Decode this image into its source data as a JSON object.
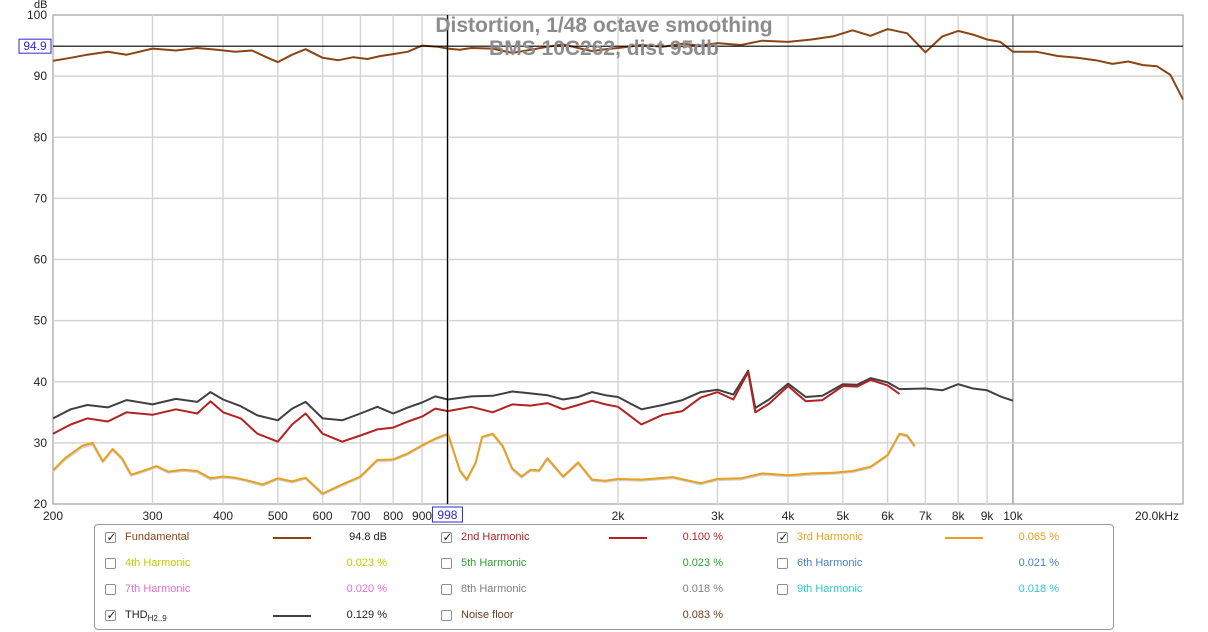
{
  "colors": {
    "fundamental": "#8B4513",
    "h2": "#B22222",
    "h3": "#E8A020",
    "h4": "#C8C800",
    "h5": "#30A030",
    "h6": "#4A7FC0",
    "h7": "#E070D0",
    "h8": "#808080",
    "h9": "#30C8D0",
    "thd": "#404040",
    "noise": "#6B3A1E",
    "noise_plot": "#D0D0D0",
    "grid": "#d4d4d4",
    "cursor": "#000000"
  },
  "chart_data": {
    "type": "line",
    "title": "Distortion, 1/48 octave smoothing",
    "subtitle": "BMS 10C262, dist 95db",
    "ylabel": "dB",
    "xscale": "log",
    "xlim": [
      200,
      20000
    ],
    "ylim": [
      20,
      100
    ],
    "y_ticks": [
      20,
      30,
      40,
      50,
      60,
      70,
      80,
      90,
      100
    ],
    "x_ticks": [
      {
        "v": 200,
        "label": "200"
      },
      {
        "v": 300,
        "label": "300"
      },
      {
        "v": 400,
        "label": "400"
      },
      {
        "v": 500,
        "label": "500"
      },
      {
        "v": 600,
        "label": "600"
      },
      {
        "v": 700,
        "label": "700"
      },
      {
        "v": 800,
        "label": "800"
      },
      {
        "v": 900,
        "label": "900"
      },
      {
        "v": 2000,
        "label": "2k"
      },
      {
        "v": 3000,
        "label": "3k"
      },
      {
        "v": 4000,
        "label": "4k"
      },
      {
        "v": 5000,
        "label": "5k"
      },
      {
        "v": 6000,
        "label": "6k"
      },
      {
        "v": 7000,
        "label": "7k"
      },
      {
        "v": 8000,
        "label": "8k"
      },
      {
        "v": 9000,
        "label": "9k"
      },
      {
        "v": 10000,
        "label": "10k"
      },
      {
        "v": 20000,
        "label": "20.0kHz"
      }
    ],
    "cursor": {
      "x": 998,
      "x_label": "998",
      "y": 94.9,
      "y_label": "94.9"
    },
    "grid": true,
    "series": [
      {
        "name": "Fundamental",
        "key": "fundamental",
        "color_key": "fundamental",
        "x": [
          200,
          215,
          230,
          250,
          270,
          300,
          330,
          360,
          390,
          420,
          450,
          480,
          500,
          530,
          560,
          600,
          640,
          680,
          720,
          760,
          800,
          850,
          900,
          960,
          1000,
          1050,
          1100,
          1200,
          1300,
          1400,
          1500,
          1600,
          1700,
          1800,
          1900,
          2000,
          2200,
          2400,
          2600,
          2800,
          3000,
          3300,
          3600,
          4000,
          4400,
          4800,
          5200,
          5600,
          6000,
          6500,
          7000,
          7500,
          8000,
          8500,
          9000,
          9500,
          10000,
          11000,
          12000,
          13000,
          14000,
          15000,
          16000,
          17000,
          18000,
          19000,
          20000
        ],
        "y": [
          92.5,
          93,
          93.5,
          94,
          93.5,
          94.5,
          94.2,
          94.6,
          94.3,
          94,
          94.2,
          93,
          92.3,
          93.5,
          94.4,
          93,
          92.6,
          93.1,
          92.8,
          93.3,
          93.6,
          94,
          95,
          94.8,
          94.5,
          94.3,
          94.6,
          94.5,
          93.8,
          94.3,
          94.8,
          95.2,
          94.6,
          94.1,
          94.4,
          94.6,
          95.1,
          94.8,
          95.3,
          95,
          95.4,
          95.1,
          95.8,
          95.6,
          96,
          96.5,
          97.5,
          96.6,
          97.7,
          97,
          93.9,
          96.5,
          97.4,
          96.8,
          96,
          95.6,
          94,
          94,
          93.3,
          93,
          92.6,
          92,
          92.4,
          91.8,
          91.6,
          90.2,
          86.2
        ]
      },
      {
        "name": "2nd Harmonic",
        "key": "h2",
        "color_key": "h2",
        "x": [
          200,
          215,
          230,
          250,
          270,
          300,
          330,
          360,
          380,
          400,
          430,
          460,
          500,
          530,
          560,
          600,
          650,
          700,
          750,
          800,
          850,
          900,
          950,
          1000,
          1100,
          1200,
          1300,
          1400,
          1500,
          1600,
          1700,
          1800,
          1900,
          2000,
          2200,
          2400,
          2600,
          2800,
          3000,
          3200,
          3400,
          3500,
          3700,
          4000,
          4300,
          4600,
          5000,
          5300,
          5600,
          6000,
          6300
        ],
        "y": [
          31.5,
          33,
          34,
          33.5,
          35,
          34.6,
          35.5,
          34.8,
          36.8,
          35,
          34,
          31.5,
          30.2,
          33,
          34.8,
          31.5,
          30.2,
          31.2,
          32.2,
          32.5,
          33.5,
          34.3,
          35.6,
          35.2,
          35.9,
          35,
          36.3,
          36.1,
          36.5,
          35.5,
          36.2,
          36.9,
          36.3,
          35.9,
          33,
          34.6,
          35.2,
          37.4,
          38.3,
          37.1,
          41.6,
          35,
          36.4,
          39.3,
          36.8,
          37,
          39.3,
          39.2,
          40.3,
          39.4,
          38
        ]
      },
      {
        "name": "3rd Harmonic",
        "key": "h3",
        "color_key": "h3",
        "x": [
          200,
          210,
          225,
          235,
          245,
          255,
          265,
          275,
          290,
          305,
          320,
          340,
          360,
          380,
          400,
          420,
          440,
          470,
          500,
          530,
          560,
          600,
          650,
          700,
          750,
          800,
          850,
          900,
          950,
          1000,
          1050,
          1080,
          1120,
          1150,
          1200,
          1250,
          1300,
          1350,
          1400,
          1450,
          1500,
          1600,
          1700,
          1800,
          1900,
          2000,
          2200,
          2500,
          2800,
          3000,
          3300,
          3600,
          4000,
          4400,
          4800,
          5200,
          5600,
          6000,
          6300,
          6500,
          6700
        ],
        "y": [
          25.5,
          27.5,
          29.5,
          30,
          27,
          29,
          27.5,
          24.8,
          25.5,
          26.2,
          25.3,
          25.6,
          25.4,
          24.2,
          24.5,
          24.3,
          23.9,
          23.2,
          24.2,
          23.7,
          24.3,
          21.7,
          23.2,
          24.5,
          27.2,
          27.3,
          28.3,
          29.6,
          30.7,
          31.5,
          25.5,
          24,
          26.8,
          31,
          31.5,
          29.5,
          25.8,
          24.5,
          25.6,
          25.5,
          27.5,
          24.5,
          26.8,
          24,
          23.8,
          24.1,
          24,
          24.4,
          23.4,
          24.1,
          24.2,
          25,
          24.7,
          25,
          25.1,
          25.4,
          26.1,
          28,
          31.5,
          31.2,
          29.5
        ]
      },
      {
        "name": "THD",
        "key": "thd",
        "color_key": "thd",
        "x": [
          200,
          215,
          230,
          250,
          270,
          300,
          330,
          360,
          380,
          400,
          430,
          460,
          500,
          530,
          560,
          600,
          650,
          700,
          750,
          800,
          850,
          900,
          950,
          1000,
          1100,
          1200,
          1300,
          1400,
          1500,
          1600,
          1700,
          1800,
          1900,
          2000,
          2200,
          2400,
          2600,
          2800,
          3000,
          3200,
          3400,
          3500,
          3700,
          4000,
          4300,
          4600,
          5000,
          5300,
          5600,
          6000,
          6300,
          7000,
          7500,
          8000,
          8500,
          9000,
          9500,
          10000
        ],
        "y": [
          34,
          35.5,
          36.2,
          35.8,
          37,
          36.3,
          37.2,
          36.7,
          38.3,
          37.1,
          36,
          34.5,
          33.7,
          35.6,
          36.7,
          34,
          33.7,
          34.8,
          35.9,
          34.8,
          35.8,
          36.6,
          37.6,
          37.1,
          37.6,
          37.7,
          38.4,
          38.1,
          37.8,
          37.1,
          37.5,
          38.3,
          37.8,
          37.5,
          35.5,
          36.2,
          37,
          38.3,
          38.7,
          37.9,
          41.8,
          35.7,
          37.1,
          39.7,
          37.5,
          37.7,
          39.6,
          39.5,
          40.6,
          39.9,
          38.8,
          38.9,
          38.6,
          39.6,
          38.9,
          38.6,
          37.6,
          36.9
        ]
      },
      {
        "name": "Noise floor",
        "key": "noise",
        "color_key": "noise_plot",
        "x": [
          200,
          210,
          225,
          235,
          245,
          255,
          265,
          275,
          290,
          305,
          320,
          340,
          360,
          380,
          400,
          420,
          440,
          470,
          500,
          530,
          560,
          600,
          650,
          700,
          750,
          800,
          850,
          900,
          950,
          1000,
          1050,
          1080,
          1120,
          1150,
          1200,
          1250,
          1300,
          1350,
          1400,
          1450,
          1500,
          1600,
          1700,
          1800,
          1900,
          2000,
          2200,
          2500,
          2800,
          3000,
          3300,
          3600,
          4000,
          4400,
          4800,
          5200,
          5600,
          6000,
          6300,
          6500,
          6700
        ],
        "y": [
          25.3,
          27.2,
          29.2,
          29.7,
          26.8,
          28.8,
          27.2,
          24.6,
          25.3,
          26,
          25.1,
          25.4,
          25.2,
          24,
          24.3,
          24.1,
          23.7,
          23,
          24,
          23.5,
          24.1,
          21.5,
          23,
          24.3,
          27,
          27.1,
          28.1,
          29.4,
          30.5,
          31.3,
          25.3,
          23.8,
          26.6,
          30.8,
          31.3,
          29.3,
          25.6,
          24.3,
          25.4,
          25.3,
          27.3,
          24.3,
          26.6,
          23.8,
          23.6,
          23.9,
          23.8,
          24.2,
          23.2,
          23.9,
          24,
          24.8,
          24.5,
          24.8,
          24.9,
          25.2,
          25.9,
          27.8,
          31.3,
          31,
          29.3
        ]
      }
    ]
  },
  "legend": {
    "rows": [
      [
        {
          "key": "fundamental",
          "label": "Fundamental",
          "checked": true,
          "show_line": true,
          "value": "94.8 dB"
        },
        {
          "key": "h2",
          "label": "2nd Harmonic",
          "checked": true,
          "show_line": true,
          "value": "0.100 %"
        },
        {
          "key": "h3",
          "label": "3rd Harmonic",
          "checked": true,
          "show_line": true,
          "value": "0.065 %"
        }
      ],
      [
        {
          "key": "h4",
          "label": "4th Harmonic",
          "checked": false,
          "show_line": false,
          "value": "0.023 %"
        },
        {
          "key": "h5",
          "label": "5th Harmonic",
          "checked": false,
          "show_line": false,
          "value": "0.023 %"
        },
        {
          "key": "h6",
          "label": "6th Harmonic",
          "checked": false,
          "show_line": false,
          "value": "0.021 %"
        }
      ],
      [
        {
          "key": "h7",
          "label": "7th Harmonic",
          "checked": false,
          "show_line": false,
          "value": "0.020 %"
        },
        {
          "key": "h8",
          "label": "8th Harmonic",
          "checked": false,
          "show_line": false,
          "value": "0.018 %"
        },
        {
          "key": "h9",
          "label": "9th Harmonic",
          "checked": false,
          "show_line": false,
          "value": "0.018 %"
        }
      ],
      [
        {
          "key": "thd",
          "label": "THD",
          "label_sub": "H2..9",
          "checked": true,
          "show_line": true,
          "value": "0.129 %"
        },
        {
          "key": "noise",
          "label": "Noise floor",
          "checked": false,
          "show_line": false,
          "value": "0.083 %"
        }
      ]
    ]
  }
}
